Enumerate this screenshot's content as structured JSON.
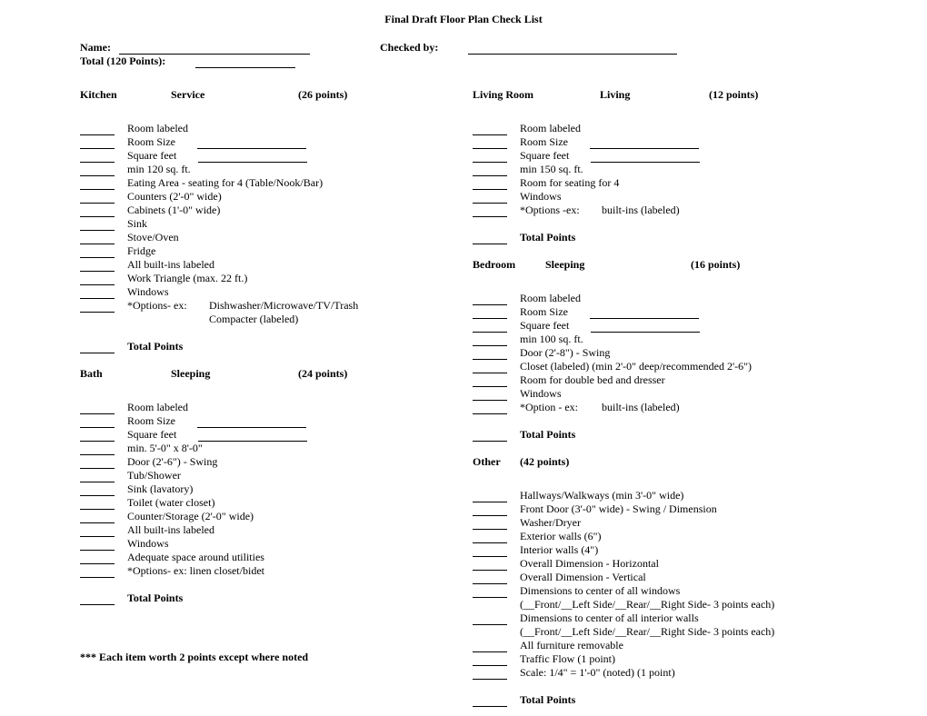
{
  "title": "Final Draft Floor Plan Check List",
  "header": {
    "name_label": "Name:",
    "checked_by_label": "Checked by:",
    "total_label": "Total (120 Points):"
  },
  "left": {
    "kitchen": {
      "col_a": "Kitchen",
      "col_b": "Service",
      "col_c": "(26 points)",
      "items": [
        {
          "type": "line",
          "text": "Room labeled"
        },
        {
          "type": "line_trail",
          "text": "Room Size"
        },
        {
          "type": "line_trail",
          "text": "Square feet"
        },
        {
          "type": "line",
          "text": "min 120 sq. ft."
        },
        {
          "type": "line",
          "text": "Eating Area - seating for 4 (Table/Nook/Bar)"
        },
        {
          "type": "line",
          "text": "Counters (2'-0\" wide)"
        },
        {
          "type": "line",
          "text": "Cabinets (1'-0\" wide)"
        },
        {
          "type": "line",
          "text": "Sink"
        },
        {
          "type": "line",
          "text": "Stove/Oven"
        },
        {
          "type": "line",
          "text": "Fridge"
        },
        {
          "type": "line",
          "text": "All built-ins labeled"
        },
        {
          "type": "line",
          "text": "Work Triangle (max. 22 ft.)"
        },
        {
          "type": "line",
          "text": "Windows"
        },
        {
          "type": "option2",
          "label": "*Options- ex:",
          "text": "Dishwasher/Microwave/TV/Trash"
        },
        {
          "type": "indent_opt",
          "text": "Compacter (labeled)"
        }
      ],
      "total": "Total Points"
    },
    "bath": {
      "col_a": "Bath",
      "col_b": "Sleeping",
      "col_c": "(24 points)",
      "items": [
        {
          "type": "line",
          "text": "Room labeled"
        },
        {
          "type": "line_trail",
          "text": "Room Size"
        },
        {
          "type": "line_trail",
          "text": "Square feet"
        },
        {
          "type": "line",
          "text": "min. 5'-0\" x 8'-0\""
        },
        {
          "type": "line",
          "text": "Door (2'-6\") - Swing"
        },
        {
          "type": "line",
          "text": "Tub/Shower"
        },
        {
          "type": "line",
          "text": "Sink (lavatory)"
        },
        {
          "type": "line",
          "text": "Toilet (water closet)"
        },
        {
          "type": "line",
          "text": "Counter/Storage (2'-0\" wide)"
        },
        {
          "type": "line",
          "text": "All built-ins labeled"
        },
        {
          "type": "line",
          "text": "Windows"
        },
        {
          "type": "line",
          "text": "Adequate space around utilities"
        },
        {
          "type": "line",
          "text": "*Options- ex: linen closet/bidet"
        }
      ],
      "total": "Total Points"
    }
  },
  "right": {
    "living": {
      "col_a": "Living Room",
      "col_b": "Living",
      "col_c": "(12 points)",
      "items": [
        {
          "type": "line",
          "text": "Room labeled"
        },
        {
          "type": "line_trail",
          "text": "Room Size"
        },
        {
          "type": "line_trail",
          "text": "Square feet"
        },
        {
          "type": "line",
          "text": "min 150 sq. ft."
        },
        {
          "type": "line",
          "text": "Room for seating for 4"
        },
        {
          "type": "line",
          "text": "Windows"
        },
        {
          "type": "option2",
          "label": "*Options -ex:",
          "text": "built-ins (labeled)"
        }
      ],
      "total": "Total Points"
    },
    "bedroom": {
      "col_a": "Bedroom",
      "col_b": "Sleeping",
      "col_c": "(16 points)",
      "items": [
        {
          "type": "line",
          "text": "Room labeled"
        },
        {
          "type": "line_trail",
          "text": "Room Size"
        },
        {
          "type": "line_trail",
          "text": "Square feet"
        },
        {
          "type": "line",
          "text": "min 100 sq. ft."
        },
        {
          "type": "line",
          "text": "Door (2'-8\") - Swing"
        },
        {
          "type": "line",
          "text": "Closet (labeled) (min 2'-0\" deep/recommended 2'-6\")"
        },
        {
          "type": "line",
          "text": "Room for double bed and dresser"
        },
        {
          "type": "line",
          "text": "Windows"
        },
        {
          "type": "option2",
          "label": "*Option - ex:",
          "text": "built-ins (labeled)"
        }
      ],
      "total": "Total Points"
    },
    "other": {
      "head_a": "Other",
      "head_b": "(42 points)",
      "items": [
        {
          "type": "line",
          "text": "Hallways/Walkways (min 3'-0\" wide)"
        },
        {
          "type": "line",
          "text": "Front Door (3'-0\" wide) - Swing / Dimension"
        },
        {
          "type": "line",
          "text": "Washer/Dryer"
        },
        {
          "type": "line",
          "text": "Exterior walls (6\")"
        },
        {
          "type": "line",
          "text": "Interior walls (4\")"
        },
        {
          "type": "line",
          "text": "Overall Dimension - Horizontal"
        },
        {
          "type": "line",
          "text": "Overall Dimension - Vertical"
        },
        {
          "type": "line",
          "text": "Dimensions to center of all windows"
        },
        {
          "type": "indent",
          "text": "(__Front/__Left Side/__Rear/__Right Side- 3 points each)"
        },
        {
          "type": "line",
          "text": "Dimensions to center of all interior walls"
        },
        {
          "type": "indent",
          "text": "(__Front/__Left Side/__Rear/__Right Side- 3 points each)"
        },
        {
          "type": "line",
          "text": "All furniture removable"
        },
        {
          "type": "line",
          "text": "Traffic Flow (1 point)"
        },
        {
          "type": "line",
          "text": "Scale: 1/4\" = 1'-0\" (noted) (1 point)"
        }
      ],
      "total": "Total Points"
    }
  },
  "footnote": "*** Each item worth 2 points except where noted"
}
